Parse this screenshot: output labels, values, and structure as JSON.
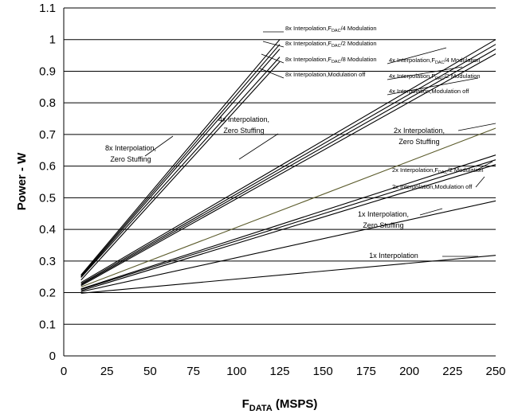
{
  "chart_data": {
    "type": "line",
    "xlim": [
      0,
      250
    ],
    "ylim": [
      0,
      1.1
    ],
    "x_ticks": [
      "0",
      "25",
      "50",
      "75",
      "100",
      "125",
      "150",
      "175",
      "200",
      "225",
      "250"
    ],
    "y_ticks": [
      "0",
      "0.1",
      "0.2",
      "0.3",
      "0.4",
      "0.5",
      "0.6",
      "0.7",
      "0.8",
      "0.9",
      "1",
      "1.1"
    ],
    "xlabel": {
      "main": "F",
      "sub": "DATA",
      "rest": " (MSPS)"
    },
    "ylabel": "Power - W",
    "grid": "horizontal",
    "series": [
      {
        "x": [
          10,
          125
        ],
        "y": [
          0.256,
          1.0
        ],
        "color": "#000000"
      },
      {
        "x": [
          10,
          125
        ],
        "y": [
          0.253,
          0.985
        ],
        "color": "#000000"
      },
      {
        "x": [
          10,
          125
        ],
        "y": [
          0.25,
          0.97
        ],
        "color": "#000000"
      },
      {
        "x": [
          10,
          125
        ],
        "y": [
          0.248,
          0.945
        ],
        "color": "#000000"
      },
      {
        "x": [
          10,
          125
        ],
        "y": [
          0.24,
          0.93
        ],
        "color": "#000000"
      },
      {
        "x": [
          10,
          250
        ],
        "y": [
          0.232,
          1.0
        ],
        "color": "#000000"
      },
      {
        "x": [
          10,
          250
        ],
        "y": [
          0.228,
          0.985
        ],
        "color": "#000000"
      },
      {
        "x": [
          10,
          250
        ],
        "y": [
          0.225,
          0.97
        ],
        "color": "#000000"
      },
      {
        "x": [
          10,
          250
        ],
        "y": [
          0.222,
          0.955
        ],
        "color": "#000000"
      },
      {
        "x": [
          10,
          250
        ],
        "y": [
          0.218,
          0.72
        ],
        "color": "#5a5a2a"
      },
      {
        "x": [
          10,
          250
        ],
        "y": [
          0.212,
          0.635
        ],
        "color": "#000000"
      },
      {
        "x": [
          10,
          250
        ],
        "y": [
          0.21,
          0.62
        ],
        "color": "#000000"
      },
      {
        "x": [
          10,
          250
        ],
        "y": [
          0.206,
          0.605
        ],
        "color": "#000000"
      },
      {
        "x": [
          10,
          250
        ],
        "y": [
          0.203,
          0.49
        ],
        "color": "#000000"
      },
      {
        "x": [
          10,
          250
        ],
        "y": [
          0.198,
          0.318
        ],
        "color": "#000000"
      }
    ],
    "annotations": [
      {
        "text": "8x Interpolation,F",
        "sub": "DAC",
        "rest": "/4 Modulation",
        "size": "small"
      },
      {
        "text": "8x Interpolation,F",
        "sub": "DAC",
        "rest": "/2 Modulation",
        "size": "small"
      },
      {
        "text": "8x Interpolation,F",
        "sub": "DAC",
        "rest": "/8 Modulation",
        "size": "small"
      },
      {
        "text": "8x Interpolation,Modulation off",
        "size": "small"
      },
      {
        "text": "4x Interpolation,F",
        "sub": "DAC",
        "rest": "/4 Modulation",
        "size": "small"
      },
      {
        "text": "4x Interpolation,F",
        "sub": "DAC",
        "rest": "/2 Modulation",
        "size": "small"
      },
      {
        "text": "4x Interpolation,Modulation off",
        "size": "small"
      },
      {
        "text": "2x Interpolation,F",
        "sub": "DAC",
        "rest": "/2 Modulation",
        "size": "small"
      },
      {
        "text": "2x Interpolation,Modulation off",
        "size": "small"
      },
      {
        "text": "8x Interpolation,",
        "size": "large"
      },
      {
        "text": "Zero Stuffing",
        "size": "large"
      },
      {
        "text": "4x Interpolation,",
        "size": "large"
      },
      {
        "text": "Zero Stuffing",
        "size": "large"
      },
      {
        "text": "2x Interpolation,",
        "size": "large"
      },
      {
        "text": "Zero Stuffing",
        "size": "large"
      },
      {
        "text": "1x Interpolation,",
        "size": "large"
      },
      {
        "text": "Zero Stuffing",
        "size": "large"
      },
      {
        "text": "1x Interpolation",
        "size": "large"
      }
    ]
  }
}
